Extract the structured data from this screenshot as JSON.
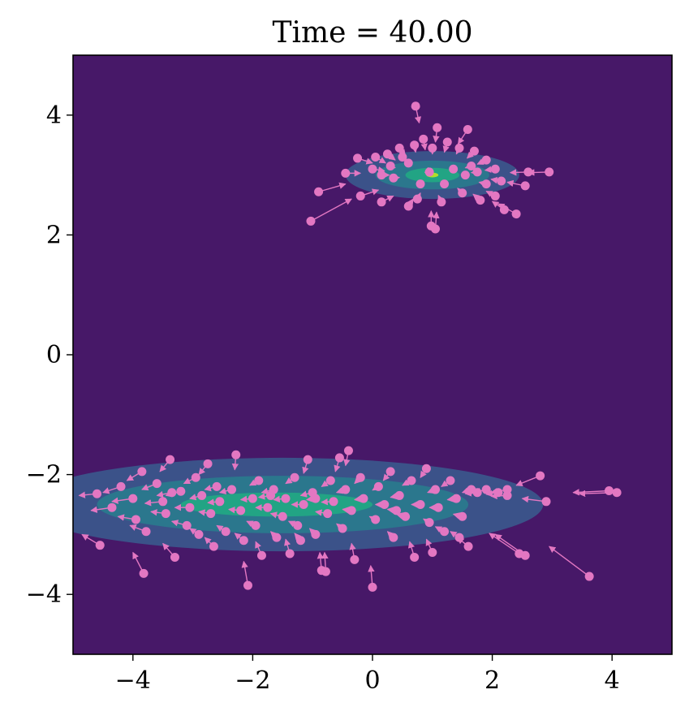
{
  "chart_data": {
    "type": "scatter",
    "title": "Time = 40.00",
    "xlabel": "",
    "ylabel": "",
    "xlim": [
      -5,
      5
    ],
    "ylim": [
      -5,
      5
    ],
    "xticks": [
      -4,
      -2,
      0,
      2,
      4
    ],
    "yticks": [
      -4,
      -2,
      0,
      2,
      4
    ],
    "xtick_labels": [
      "−4",
      "−2",
      "0",
      "2",
      "4"
    ],
    "ytick_labels": [
      "−4",
      "−2",
      "0",
      "2",
      "4"
    ],
    "grid": false,
    "background_color": "#471868",
    "particle_color": "#e377c2",
    "density_levels": [
      {
        "cx": 1.0,
        "cy": 3.0,
        "rx": 1.45,
        "ry": 0.4,
        "color": "#3b5289"
      },
      {
        "cx": 1.0,
        "cy": 3.0,
        "rx": 0.95,
        "ry": 0.24,
        "color": "#2b778d"
      },
      {
        "cx": 1.0,
        "cy": 3.0,
        "rx": 0.45,
        "ry": 0.12,
        "color": "#22a484"
      },
      {
        "cx": 1.0,
        "cy": 3.0,
        "rx": 0.1,
        "ry": 0.04,
        "color": "#b3dd2b"
      },
      {
        "cx": -1.5,
        "cy": -2.5,
        "rx": 4.35,
        "ry": 0.78,
        "color": "#3b5289"
      },
      {
        "cx": -1.5,
        "cy": -2.5,
        "rx": 3.1,
        "ry": 0.48,
        "color": "#2b778d"
      },
      {
        "cx": -1.6,
        "cy": -2.5,
        "rx": 1.6,
        "ry": 0.2,
        "color": "#22a484"
      }
    ],
    "series": [
      {
        "points": [
          [
            0.72,
            4.15,
            0.78,
            3.87
          ],
          [
            1.08,
            3.79,
            1.05,
            3.55
          ],
          [
            1.59,
            3.76,
            1.43,
            3.52
          ],
          [
            0.85,
            3.6,
            0.88,
            3.42
          ],
          [
            1.25,
            3.55,
            1.2,
            3.38
          ],
          [
            0.45,
            3.45,
            0.55,
            3.32
          ],
          [
            0.25,
            3.35,
            0.38,
            3.25
          ],
          [
            1.7,
            3.4,
            1.58,
            3.28
          ],
          [
            1.9,
            3.25,
            1.75,
            3.18
          ],
          [
            2.05,
            3.1,
            1.88,
            3.08
          ],
          [
            0.05,
            3.3,
            0.22,
            3.2
          ],
          [
            -0.45,
            3.03,
            -0.2,
            3.03
          ],
          [
            0.0,
            3.1,
            0.2,
            3.07
          ],
          [
            2.6,
            3.05,
            2.3,
            3.04
          ],
          [
            2.95,
            3.05,
            2.6,
            3.04
          ],
          [
            -0.9,
            2.72,
            -0.45,
            2.85
          ],
          [
            -1.03,
            2.23,
            -0.35,
            2.6
          ],
          [
            -0.2,
            2.65,
            0.1,
            2.75
          ],
          [
            0.15,
            2.55,
            0.35,
            2.65
          ],
          [
            0.6,
            2.48,
            0.68,
            2.6
          ],
          [
            0.75,
            2.6,
            0.8,
            2.7
          ],
          [
            0.98,
            2.15,
            0.98,
            2.4
          ],
          [
            1.05,
            2.1,
            1.07,
            2.38
          ],
          [
            1.15,
            2.55,
            1.1,
            2.66
          ],
          [
            1.5,
            2.7,
            1.42,
            2.78
          ],
          [
            1.8,
            2.58,
            1.68,
            2.68
          ],
          [
            2.05,
            2.65,
            1.9,
            2.73
          ],
          [
            2.2,
            2.42,
            2.0,
            2.56
          ],
          [
            2.4,
            2.35,
            2.1,
            2.52
          ],
          [
            2.15,
            2.9,
            1.98,
            2.93
          ],
          [
            2.55,
            2.82,
            2.25,
            2.88
          ],
          [
            0.35,
            2.95,
            0.45,
            2.96
          ],
          [
            0.6,
            3.2,
            0.65,
            3.15
          ],
          [
            0.95,
            3.05,
            0.98,
            3.03
          ],
          [
            1.35,
            3.1,
            1.3,
            3.07
          ],
          [
            1.55,
            3.0,
            1.48,
            3.0
          ],
          [
            1.2,
            2.85,
            1.18,
            2.9
          ],
          [
            0.8,
            2.85,
            0.82,
            2.9
          ],
          [
            0.5,
            3.3,
            0.55,
            3.25
          ],
          [
            1.0,
            3.45,
            1.0,
            3.35
          ],
          [
            1.45,
            3.45,
            1.4,
            3.35
          ],
          [
            0.7,
            3.5,
            0.72,
            3.38
          ],
          [
            1.75,
            3.05,
            1.65,
            3.04
          ],
          [
            0.3,
            3.15,
            0.38,
            3.12
          ],
          [
            1.9,
            2.85,
            1.78,
            2.88
          ],
          [
            0.15,
            3.0,
            0.28,
            3.0
          ],
          [
            -0.25,
            3.28,
            0.0,
            3.2
          ],
          [
            1.65,
            3.15,
            1.55,
            3.12
          ],
          [
            -4.6,
            -2.32,
            -4.9,
            -2.35
          ],
          [
            -4.55,
            -3.18,
            -4.85,
            -3.0
          ],
          [
            -4.35,
            -2.55,
            -4.7,
            -2.6
          ],
          [
            -4.2,
            -2.2,
            -4.5,
            -2.3
          ],
          [
            -4.0,
            -2.4,
            -4.35,
            -2.45
          ],
          [
            -3.85,
            -1.95,
            -4.1,
            -2.1
          ],
          [
            -3.95,
            -2.75,
            -4.25,
            -2.7
          ],
          [
            -3.82,
            -3.65,
            -4.0,
            -3.3
          ],
          [
            -3.78,
            -2.95,
            -4.05,
            -2.85
          ],
          [
            -3.6,
            -2.15,
            -3.85,
            -2.25
          ],
          [
            -3.5,
            -2.45,
            -3.8,
            -2.48
          ],
          [
            -3.45,
            -2.65,
            -3.7,
            -2.62
          ],
          [
            -3.38,
            -1.75,
            -3.55,
            -1.95
          ],
          [
            -3.3,
            -3.38,
            -3.5,
            -3.15
          ],
          [
            -3.2,
            -2.28,
            -3.45,
            -2.35
          ],
          [
            -3.1,
            -2.85,
            -3.35,
            -2.78
          ],
          [
            -3.05,
            -2.55,
            -3.3,
            -2.55
          ],
          [
            -2.95,
            -2.05,
            -3.15,
            -2.15
          ],
          [
            -2.85,
            -2.35,
            -3.05,
            -2.4
          ],
          [
            -2.75,
            -1.82,
            -2.9,
            -2.0
          ],
          [
            -2.7,
            -2.65,
            -2.9,
            -2.62
          ],
          [
            -2.65,
            -3.2,
            -2.8,
            -3.05
          ],
          [
            -2.55,
            -2.45,
            -2.75,
            -2.47
          ],
          [
            -2.45,
            -2.95,
            -2.6,
            -2.85
          ],
          [
            -2.35,
            -2.25,
            -2.55,
            -2.3
          ],
          [
            -2.28,
            -1.67,
            -2.3,
            -1.92
          ],
          [
            -2.2,
            -2.6,
            -2.4,
            -2.58
          ],
          [
            -2.15,
            -3.1,
            -2.3,
            -2.98
          ],
          [
            -2.08,
            -3.85,
            -2.15,
            -3.45
          ],
          [
            -2.0,
            -2.4,
            -2.2,
            -2.42
          ],
          [
            -1.95,
            -2.85,
            -2.1,
            -2.78
          ],
          [
            -1.9,
            -2.1,
            -2.05,
            -2.18
          ],
          [
            -1.85,
            -3.35,
            -1.95,
            -3.12
          ],
          [
            -1.75,
            -2.55,
            -1.95,
            -2.55
          ],
          [
            -1.65,
            -2.25,
            -1.85,
            -2.3
          ],
          [
            -1.6,
            -3.05,
            -1.7,
            -2.95
          ],
          [
            -1.5,
            -2.7,
            -1.7,
            -2.65
          ],
          [
            -1.45,
            -2.4,
            -1.65,
            -2.42
          ],
          [
            -1.38,
            -3.32,
            -1.45,
            -3.08
          ],
          [
            -1.3,
            -2.05,
            -1.45,
            -2.15
          ],
          [
            -1.25,
            -2.85,
            -1.4,
            -2.78
          ],
          [
            -1.15,
            -2.5,
            -1.35,
            -2.5
          ],
          [
            -1.08,
            -1.75,
            -1.15,
            -1.98
          ],
          [
            -1.0,
            -2.3,
            -1.2,
            -2.35
          ],
          [
            -0.95,
            -3.0,
            -1.05,
            -2.9
          ],
          [
            -0.85,
            -3.6,
            -0.88,
            -3.3
          ],
          [
            -0.78,
            -3.62,
            -0.8,
            -3.3
          ],
          [
            -0.75,
            -2.65,
            -0.95,
            -2.62
          ],
          [
            -0.7,
            -2.1,
            -0.85,
            -2.2
          ],
          [
            -0.65,
            -2.45,
            -0.85,
            -2.46
          ],
          [
            -0.55,
            -1.72,
            -0.62,
            -1.95
          ],
          [
            -0.5,
            -2.9,
            -0.6,
            -2.82
          ],
          [
            -0.45,
            -2.25,
            -0.6,
            -2.3
          ],
          [
            -0.4,
            -1.6,
            -0.45,
            -1.85
          ],
          [
            -0.35,
            -2.6,
            -0.5,
            -2.58
          ],
          [
            -0.3,
            -3.42,
            -0.35,
            -3.15
          ],
          [
            -0.2,
            -2.05,
            -0.3,
            -2.15
          ],
          [
            -0.15,
            -2.4,
            -0.3,
            -2.42
          ],
          [
            0.0,
            -3.88,
            -0.03,
            -3.52
          ],
          [
            0.05,
            -2.75,
            -0.05,
            -2.7
          ],
          [
            0.1,
            -2.2,
            0.0,
            -2.26
          ],
          [
            0.2,
            -2.5,
            0.05,
            -2.5
          ],
          [
            0.3,
            -1.95,
            0.18,
            -2.1
          ],
          [
            0.35,
            -3.05,
            0.25,
            -2.95
          ],
          [
            0.45,
            -2.35,
            0.3,
            -2.38
          ],
          [
            0.55,
            -2.7,
            0.4,
            -2.66
          ],
          [
            0.65,
            -2.1,
            0.5,
            -2.18
          ],
          [
            0.7,
            -3.38,
            0.62,
            -3.12
          ],
          [
            0.8,
            -2.5,
            0.65,
            -2.5
          ],
          [
            0.9,
            -1.9,
            0.8,
            -2.05
          ],
          [
            0.95,
            -2.8,
            0.85,
            -2.74
          ],
          [
            1.05,
            -2.25,
            0.92,
            -2.3
          ],
          [
            1.1,
            -2.55,
            0.95,
            -2.55
          ],
          [
            1.2,
            -2.95,
            1.05,
            -2.87
          ],
          [
            1.3,
            -2.1,
            1.15,
            -2.2
          ],
          [
            1.4,
            -2.4,
            1.25,
            -2.42
          ],
          [
            1.45,
            -3.05,
            1.3,
            -2.95
          ],
          [
            1.5,
            -2.7,
            1.35,
            -2.66
          ],
          [
            1.6,
            -3.2,
            1.42,
            -3.05
          ],
          [
            1.65,
            -2.25,
            1.5,
            -2.3
          ],
          [
            1.75,
            -2.3,
            1.55,
            -2.32
          ],
          [
            1.9,
            -2.25,
            1.7,
            -2.3
          ],
          [
            2.1,
            -2.3,
            1.9,
            -2.33
          ],
          [
            2.25,
            -2.25,
            1.98,
            -2.3
          ],
          [
            2.25,
            -2.35,
            1.98,
            -2.36
          ],
          [
            2.8,
            -2.02,
            2.4,
            -2.18
          ],
          [
            2.9,
            -2.45,
            2.5,
            -2.4
          ],
          [
            2.45,
            -3.32,
            1.95,
            -2.98
          ],
          [
            2.55,
            -3.35,
            2.05,
            -3.0
          ],
          [
            3.62,
            -3.7,
            2.95,
            -3.2
          ],
          [
            3.95,
            -2.27,
            3.35,
            -2.3
          ],
          [
            4.08,
            -2.3,
            3.45,
            -2.32
          ],
          [
            -1.7,
            -2.35,
            -1.9,
            -2.38
          ],
          [
            -2.6,
            -2.2,
            -2.8,
            -2.25
          ],
          [
            -3.35,
            -2.3,
            -3.6,
            -2.35
          ],
          [
            -1.2,
            -3.1,
            -1.3,
            -2.98
          ],
          [
            0.4,
            -2.6,
            0.25,
            -2.58
          ],
          [
            -0.95,
            -2.4,
            -1.1,
            -2.42
          ],
          [
            -2.9,
            -3.0,
            -3.05,
            -2.9
          ],
          [
            1.0,
            -3.3,
            0.9,
            -3.08
          ]
        ]
      }
    ]
  }
}
